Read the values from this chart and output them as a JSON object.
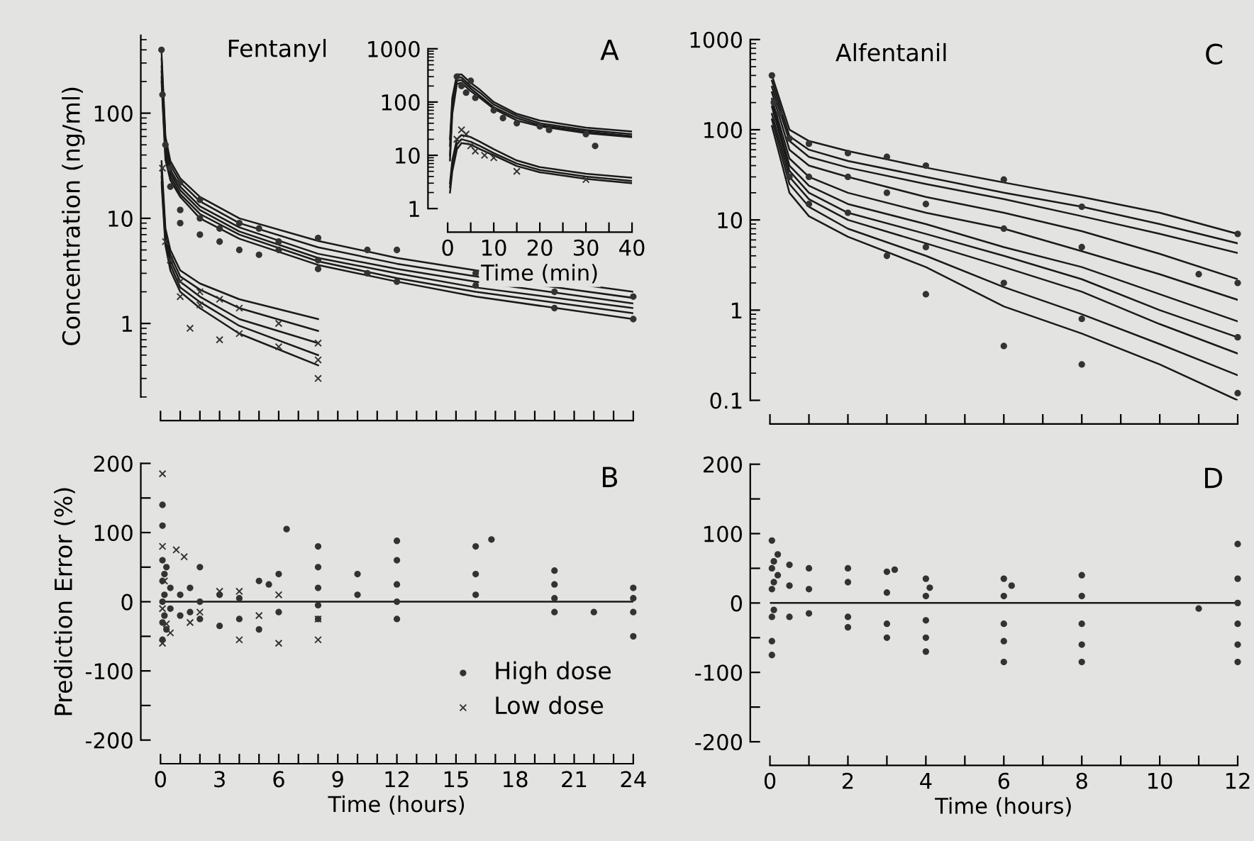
{
  "chart_data": [
    {
      "type": "line",
      "title": "Fentanyl",
      "ylabel": "Concentration (ng/ml)",
      "annotations": [
        "A"
      ],
      "log": "y",
      "xlim": [
        0,
        24
      ],
      "ylim": [
        0.2,
        550
      ],
      "yticks": [
        1,
        10,
        100
      ],
      "tick_labels": "y",
      "xticks": [
        {
          "value": 0,
          "label": null
        },
        {
          "value": 1,
          "label": null
        },
        {
          "value": 2,
          "label": null
        },
        {
          "value": 3,
          "label": null
        },
        {
          "value": 4,
          "label": null
        },
        {
          "value": 5,
          "label": null
        },
        {
          "value": 6,
          "label": null
        },
        {
          "value": 7,
          "label": null
        },
        {
          "value": 8,
          "label": null
        },
        {
          "value": 9,
          "label": null
        },
        {
          "value": 10,
          "label": null
        },
        {
          "value": 11,
          "label": null
        },
        {
          "value": 12,
          "label": null
        },
        {
          "value": 13,
          "label": null
        },
        {
          "value": 14,
          "label": null
        },
        {
          "value": 15,
          "label": null
        },
        {
          "value": 16,
          "label": null
        },
        {
          "value": 17,
          "label": null
        },
        {
          "value": 18,
          "label": null
        },
        {
          "value": 19,
          "label": null
        },
        {
          "value": 20,
          "label": null
        },
        {
          "value": 21,
          "label": null
        },
        {
          "value": 22,
          "label": null
        },
        {
          "value": 23,
          "label": null
        },
        {
          "value": 24,
          "label": null
        }
      ],
      "series": [
        {
          "color": "#1a1a1a",
          "x": [
            0.05,
            0.25,
            0.5,
            1,
            2,
            4,
            8,
            12,
            16,
            24
          ],
          "values": [
            380,
            60,
            35,
            24,
            16,
            10,
            6.1,
            4.2,
            3.2,
            2.0
          ]
        },
        {
          "color": "#1a1a1a",
          "x": [
            0.05,
            0.25,
            0.5,
            1,
            2,
            4,
            8,
            12,
            16,
            24
          ],
          "values": [
            330,
            55,
            32,
            22,
            14.5,
            9,
            5.3,
            3.7,
            2.8,
            1.75
          ]
        },
        {
          "color": "#1a1a1a",
          "x": [
            0.05,
            0.25,
            0.5,
            1,
            2,
            4,
            8,
            12,
            16,
            24
          ],
          "values": [
            280,
            50,
            29,
            20,
            13,
            8.2,
            4.6,
            3.3,
            2.5,
            1.55
          ]
        },
        {
          "color": "#1a1a1a",
          "x": [
            0.05,
            0.25,
            0.5,
            1,
            2,
            4,
            8,
            12,
            16,
            24
          ],
          "values": [
            250,
            45,
            27,
            18.5,
            12,
            7.5,
            4.2,
            3,
            2.2,
            1.4
          ]
        },
        {
          "color": "#1a1a1a",
          "x": [
            0.05,
            0.25,
            0.5,
            1,
            2,
            4,
            8,
            12,
            16,
            24
          ],
          "values": [
            220,
            40,
            25,
            17,
            11,
            7,
            3.9,
            2.7,
            2,
            1.25
          ]
        },
        {
          "color": "#1a1a1a",
          "x": [
            0.05,
            0.25,
            0.5,
            1,
            2,
            4,
            8,
            12,
            16,
            24
          ],
          "values": [
            200,
            36,
            23,
            16,
            10,
            6.4,
            3.6,
            2.5,
            1.8,
            1.1
          ]
        },
        {
          "color": "#1a1a1a",
          "x": [
            0.05,
            0.25,
            0.5,
            1,
            2,
            4,
            8
          ],
          "values": [
            35,
            8,
            5,
            3.2,
            2.4,
            1.7,
            1.1
          ]
        },
        {
          "color": "#1a1a1a",
          "x": [
            0.05,
            0.25,
            0.5,
            1,
            2,
            4,
            8
          ],
          "values": [
            30,
            7,
            4.5,
            2.8,
            2.1,
            1.4,
            0.85
          ]
        },
        {
          "color": "#1a1a1a",
          "x": [
            0.05,
            0.25,
            0.5,
            1,
            2,
            4,
            8
          ],
          "values": [
            28,
            6.5,
            4,
            2.5,
            1.8,
            1.1,
            0.65
          ]
        },
        {
          "color": "#1a1a1a",
          "x": [
            0.05,
            0.25,
            0.5,
            1,
            2,
            4,
            8
          ],
          "values": [
            25,
            6,
            3.6,
            2.2,
            1.6,
            0.95,
            0.5
          ]
        },
        {
          "color": "#1a1a1a",
          "x": [
            0.05,
            0.25,
            0.5,
            1,
            2,
            4,
            8
          ],
          "values": [
            22,
            5.5,
            3.2,
            2,
            1.4,
            0.8,
            0.4
          ]
        },
        {
          "type": "scatter",
          "marker": "circle",
          "color": "#333333",
          "x": [
            0.05,
            0.1,
            0.25,
            0.5,
            0.5,
            1,
            1,
            1,
            2,
            2,
            2,
            3,
            3,
            4,
            4,
            5,
            5,
            6,
            6,
            8,
            8,
            8,
            10.5,
            10.5,
            12,
            12,
            16,
            16,
            20,
            20,
            24,
            24
          ],
          "values": [
            400,
            150,
            50,
            30,
            20,
            22,
            12,
            9,
            15,
            10,
            7,
            8,
            6,
            9,
            5,
            8,
            4.5,
            6,
            5,
            6.5,
            4,
            3.3,
            5,
            3,
            5,
            2.5,
            3,
            2.3,
            2,
            1.4,
            1.8,
            1.1
          ]
        },
        {
          "type": "scatter",
          "marker": "cross",
          "color": "#333333",
          "x": [
            0.1,
            0.25,
            0.5,
            1,
            1,
            1.5,
            2,
            2,
            3,
            3,
            4,
            4,
            6,
            6,
            8,
            8,
            8
          ],
          "values": [
            30,
            6,
            4,
            2.5,
            1.8,
            0.9,
            2,
            1.5,
            1.7,
            0.7,
            1.4,
            0.8,
            1.0,
            0.6,
            0.65,
            0.45,
            0.3
          ]
        }
      ]
    },
    {
      "type": "line",
      "xlabel": "Time (min)",
      "log": "y",
      "xlim": [
        0,
        40
      ],
      "ylim": [
        1,
        1000
      ],
      "yticks": [
        1,
        10,
        100,
        1000
      ],
      "xticks": [
        0,
        {
          "value": 5,
          "label": null
        },
        10,
        {
          "value": 15,
          "label": null
        },
        20,
        {
          "value": 25,
          "label": null
        },
        30,
        {
          "value": 35,
          "label": null
        },
        40
      ],
      "series": [
        {
          "color": "#1a1a1a",
          "x": [
            0.5,
            1,
            2,
            3,
            5,
            7,
            10,
            15,
            20,
            30,
            40
          ],
          "values": [
            20,
            120,
            330,
            330,
            230,
            170,
            100,
            60,
            45,
            33,
            28
          ]
        },
        {
          "color": "#1a1a1a",
          "x": [
            0.5,
            1,
            2,
            3,
            5,
            7,
            10,
            15,
            20,
            30,
            40
          ],
          "values": [
            15,
            100,
            290,
            290,
            200,
            150,
            90,
            55,
            40,
            30,
            25
          ]
        },
        {
          "color": "#1a1a1a",
          "x": [
            0.5,
            1,
            2,
            3,
            5,
            7,
            10,
            15,
            20,
            30,
            40
          ],
          "values": [
            10,
            80,
            250,
            260,
            180,
            130,
            80,
            50,
            37,
            28,
            23
          ]
        },
        {
          "color": "#1a1a1a",
          "x": [
            0.5,
            1,
            2,
            3,
            5,
            7,
            10,
            15,
            20,
            30,
            40
          ],
          "values": [
            8,
            60,
            220,
            230,
            160,
            120,
            75,
            45,
            35,
            26,
            22
          ]
        },
        {
          "color": "#1a1a1a",
          "x": [
            0.5,
            1,
            2,
            3,
            5,
            7,
            10,
            15,
            20,
            30,
            40
          ],
          "values": [
            3,
            8,
            20,
            24,
            22,
            18,
            13,
            8,
            6,
            4.5,
            3.8
          ]
        },
        {
          "color": "#1a1a1a",
          "x": [
            0.5,
            1,
            2,
            3,
            5,
            7,
            10,
            15,
            20,
            30,
            40
          ],
          "values": [
            2.5,
            6,
            16,
            20,
            18,
            15,
            11,
            7,
            5.3,
            4,
            3.3
          ]
        },
        {
          "color": "#1a1a1a",
          "x": [
            0.5,
            1,
            2,
            3,
            5,
            7,
            10,
            15,
            20,
            30,
            40
          ],
          "values": [
            2,
            5,
            13,
            17,
            16,
            13,
            10,
            6.3,
            4.8,
            3.6,
            3
          ]
        },
        {
          "type": "scatter",
          "marker": "circle",
          "color": "#333333",
          "x": [
            2,
            3,
            4,
            5,
            6,
            10,
            12,
            15,
            20,
            22,
            30,
            32
          ],
          "values": [
            300,
            200,
            150,
            250,
            120,
            70,
            50,
            40,
            35,
            30,
            25,
            15
          ]
        },
        {
          "type": "scatter",
          "marker": "cross",
          "color": "#333333",
          "x": [
            2,
            3,
            4,
            5,
            6,
            8,
            10,
            15,
            30
          ],
          "values": [
            20,
            30,
            25,
            15,
            12,
            10,
            9,
            5,
            3.5
          ]
        }
      ]
    },
    {
      "type": "line",
      "title": "Alfentanil",
      "annotations": [
        "C"
      ],
      "log": "y",
      "xlim": [
        0,
        12
      ],
      "ylim": [
        0.1,
        1000
      ],
      "yticks": [
        0.1,
        1,
        10,
        100,
        1000
      ],
      "tick_labels": "y",
      "xticks": [
        {
          "value": 0,
          "label": null
        },
        {
          "value": 1,
          "label": null
        },
        {
          "value": 2,
          "label": null
        },
        {
          "value": 3,
          "label": null
        },
        {
          "value": 4,
          "label": null
        },
        {
          "value": 5,
          "label": null
        },
        {
          "value": 6,
          "label": null
        },
        {
          "value": 7,
          "label": null
        },
        {
          "value": 8,
          "label": null
        },
        {
          "value": 9,
          "label": null
        },
        {
          "value": 10,
          "label": null
        },
        {
          "value": 11,
          "label": null
        },
        {
          "value": 12,
          "label": null
        }
      ],
      "series": [
        {
          "color": "#1a1a1a",
          "x": [
            0.05,
            0.5,
            1,
            2,
            4,
            6,
            8,
            10,
            12
          ],
          "values": [
            400,
            100,
            75,
            58,
            38,
            26,
            18,
            12,
            7
          ]
        },
        {
          "color": "#1a1a1a",
          "x": [
            0.05,
            0.5,
            1,
            2,
            4,
            6,
            8,
            10,
            12
          ],
          "values": [
            350,
            85,
            60,
            45,
            30,
            20,
            14,
            9,
            5.5
          ]
        },
        {
          "color": "#1a1a1a",
          "x": [
            0.05,
            0.5,
            1,
            2,
            4,
            6,
            8,
            10,
            12
          ],
          "values": [
            300,
            75,
            50,
            38,
            25,
            17,
            11,
            7,
            4.3
          ]
        },
        {
          "color": "#1a1a1a",
          "x": [
            0.05,
            0.5,
            1,
            2,
            4,
            6,
            8,
            10,
            12
          ],
          "values": [
            260,
            60,
            40,
            30,
            18,
            12,
            7.5,
            4.2,
            2.2
          ]
        },
        {
          "color": "#1a1a1a",
          "x": [
            0.05,
            0.5,
            1,
            2,
            4,
            6,
            8,
            10,
            12
          ],
          "values": [
            220,
            48,
            30,
            20,
            12,
            8,
            4.5,
            2.5,
            1.3
          ]
        },
        {
          "color": "#1a1a1a",
          "x": [
            0.05,
            0.5,
            1,
            2,
            4,
            6,
            8,
            10,
            12
          ],
          "values": [
            200,
            40,
            24,
            15,
            9,
            5,
            3,
            1.5,
            0.75
          ]
        },
        {
          "color": "#1a1a1a",
          "x": [
            0.05,
            0.5,
            1,
            2,
            4,
            6,
            8,
            10,
            12
          ],
          "values": [
            180,
            35,
            20,
            12,
            7,
            4,
            2.2,
            1,
            0.5
          ]
        },
        {
          "color": "#1a1a1a",
          "x": [
            0.05,
            0.5,
            1,
            2,
            4,
            6,
            8,
            10,
            12
          ],
          "values": [
            150,
            30,
            17,
            10,
            5.5,
            3,
            1.6,
            0.7,
            0.33
          ]
        },
        {
          "color": "#1a1a1a",
          "x": [
            0.05,
            0.5,
            1,
            2,
            4,
            6,
            8,
            10,
            12
          ],
          "values": [
            130,
            25,
            14,
            8,
            4,
            1.8,
            0.9,
            0.42,
            0.19
          ]
        },
        {
          "color": "#1a1a1a",
          "x": [
            0.05,
            0.5,
            1,
            2,
            4,
            6,
            8,
            10,
            12
          ],
          "values": [
            110,
            20,
            11,
            6.5,
            3,
            1.1,
            0.55,
            0.25,
            0.1
          ]
        },
        {
          "type": "scatter",
          "marker": "circle",
          "color": "#333333",
          "x": [
            0.05,
            0.1,
            0.25,
            0.5,
            0.5,
            1,
            1,
            1,
            2,
            2,
            2,
            3,
            3,
            3,
            4,
            4,
            4,
            4,
            6,
            6,
            6,
            6,
            8,
            8,
            8,
            8,
            11,
            12,
            12,
            12,
            12
          ],
          "values": [
            400,
            200,
            150,
            80,
            30,
            70,
            30,
            15,
            55,
            30,
            12,
            50,
            20,
            4,
            40,
            15,
            5,
            1.5,
            28,
            8,
            2,
            0.4,
            14,
            5,
            0.8,
            0.25,
            2.5,
            7,
            2,
            0.5,
            0.12
          ]
        }
      ]
    },
    {
      "type": "scatter",
      "ylabel": "Prediction Error (%)",
      "xlabel": "Time (hours)",
      "annotations": [
        "B"
      ],
      "legend": "bottom right",
      "xlim": [
        0,
        24
      ],
      "ylim": [
        -200,
        200
      ],
      "yticks": [
        -200,
        {
          "value": -150,
          "label": null
        },
        -100,
        {
          "value": -50,
          "label": null
        },
        0,
        {
          "value": 50,
          "label": null
        },
        100,
        {
          "value": 150,
          "label": null
        },
        200
      ],
      "xticks": [
        0,
        {
          "value": 1,
          "label": null
        },
        {
          "value": 2,
          "label": null
        },
        3,
        {
          "value": 4,
          "label": null
        },
        {
          "value": 5,
          "label": null
        },
        6,
        {
          "value": 7,
          "label": null
        },
        {
          "value": 8,
          "label": null
        },
        9,
        {
          "value": 10,
          "label": null
        },
        {
          "value": 11,
          "label": null
        },
        12,
        {
          "value": 13,
          "label": null
        },
        {
          "value": 14,
          "label": null
        },
        15,
        {
          "value": 16,
          "label": null
        },
        {
          "value": 17,
          "label": null
        },
        18,
        {
          "value": 19,
          "label": null
        },
        {
          "value": 20,
          "label": null
        },
        21,
        {
          "value": 22,
          "label": null
        },
        {
          "value": 23,
          "label": null
        },
        24
      ],
      "ref_lines": [
        {
          "axis": "y",
          "value": 0,
          "color": "#1a1a1a"
        }
      ],
      "series": [
        {
          "name": "High dose",
          "marker": "circle",
          "color": "#333333",
          "x": [
            0.1,
            0.1,
            0.1,
            0.1,
            0.1,
            0.1,
            0.1,
            0.2,
            0.2,
            0.2,
            0.3,
            0.3,
            0.5,
            0.5,
            1,
            1,
            1.5,
            1.5,
            2,
            2,
            2,
            3,
            3,
            4,
            4,
            5,
            5,
            5.5,
            6,
            6,
            6.4,
            8,
            8,
            8,
            8,
            8,
            10,
            10,
            12,
            12,
            12,
            12,
            12,
            16,
            16,
            16,
            16.8,
            20,
            20,
            20,
            20,
            22,
            24,
            24,
            24,
            24
          ],
          "values": [
            140,
            110,
            60,
            30,
            0,
            -30,
            -55,
            40,
            10,
            -20,
            50,
            -40,
            20,
            -10,
            10,
            -20,
            20,
            -15,
            50,
            0,
            -25,
            10,
            -35,
            5,
            -25,
            30,
            -40,
            25,
            40,
            -15,
            105,
            80,
            50,
            20,
            -5,
            -25,
            40,
            10,
            88,
            60,
            25,
            0,
            -25,
            80,
            40,
            10,
            90,
            45,
            25,
            5,
            -15,
            -15,
            20,
            5,
            -15,
            -50
          ]
        },
        {
          "name": "Low dose",
          "marker": "cross",
          "color": "#333333",
          "x": [
            0.1,
            0.1,
            0.1,
            0.1,
            0.2,
            0.3,
            0.5,
            0.8,
            1.2,
            1.5,
            2,
            3,
            4,
            4,
            5,
            6,
            6,
            8,
            8
          ],
          "values": [
            185,
            80,
            -10,
            -60,
            30,
            -32,
            -45,
            75,
            65,
            -30,
            -15,
            15,
            15,
            -55,
            -20,
            10,
            -60,
            -25,
            -55
          ]
        }
      ]
    },
    {
      "type": "scatter",
      "xlabel": "Time (hours)",
      "xlim": [
        0,
        12
      ],
      "ylim": [
        -200,
        200
      ],
      "annotations": [
        "D"
      ],
      "yticks": [
        -200,
        {
          "value": -150,
          "label": null
        },
        -100,
        {
          "value": -50,
          "label": null
        },
        0,
        {
          "value": 50,
          "label": null
        },
        100,
        {
          "value": 150,
          "label": null
        },
        200
      ],
      "xticks": [
        0,
        {
          "value": 1,
          "label": null
        },
        2,
        {
          "value": 3,
          "label": null
        },
        4,
        {
          "value": 5,
          "label": null
        },
        6,
        {
          "value": 7,
          "label": null
        },
        8,
        {
          "value": 9,
          "label": null
        },
        10,
        {
          "value": 11,
          "label": null
        },
        12
      ],
      "ref_lines": [
        {
          "axis": "y",
          "value": 0,
          "color": "#1a1a1a"
        }
      ],
      "series": [
        {
          "marker": "circle",
          "color": "#333333",
          "x": [
            0.05,
            0.05,
            0.05,
            0.05,
            0.05,
            0.05,
            0.1,
            0.1,
            0.1,
            0.2,
            0.2,
            0.5,
            0.5,
            0.5,
            1,
            1,
            1,
            2,
            2,
            2,
            2,
            3,
            3,
            3,
            3,
            3.2,
            4,
            4,
            4,
            4,
            4,
            4.1,
            6,
            6,
            6,
            6,
            6,
            6.2,
            8,
            8,
            8,
            8,
            8,
            11,
            12,
            12,
            12,
            12,
            12,
            12
          ],
          "values": [
            90,
            50,
            20,
            -20,
            -55,
            -75,
            60,
            30,
            -10,
            70,
            40,
            55,
            25,
            -20,
            50,
            20,
            -15,
            50,
            30,
            -20,
            -35,
            45,
            15,
            -30,
            -50,
            48,
            35,
            10,
            -25,
            -50,
            -70,
            22,
            35,
            10,
            -30,
            -55,
            -85,
            25,
            40,
            10,
            -30,
            -60,
            -85,
            -8,
            85,
            35,
            0,
            -30,
            -60,
            -85
          ]
        }
      ]
    }
  ]
}
